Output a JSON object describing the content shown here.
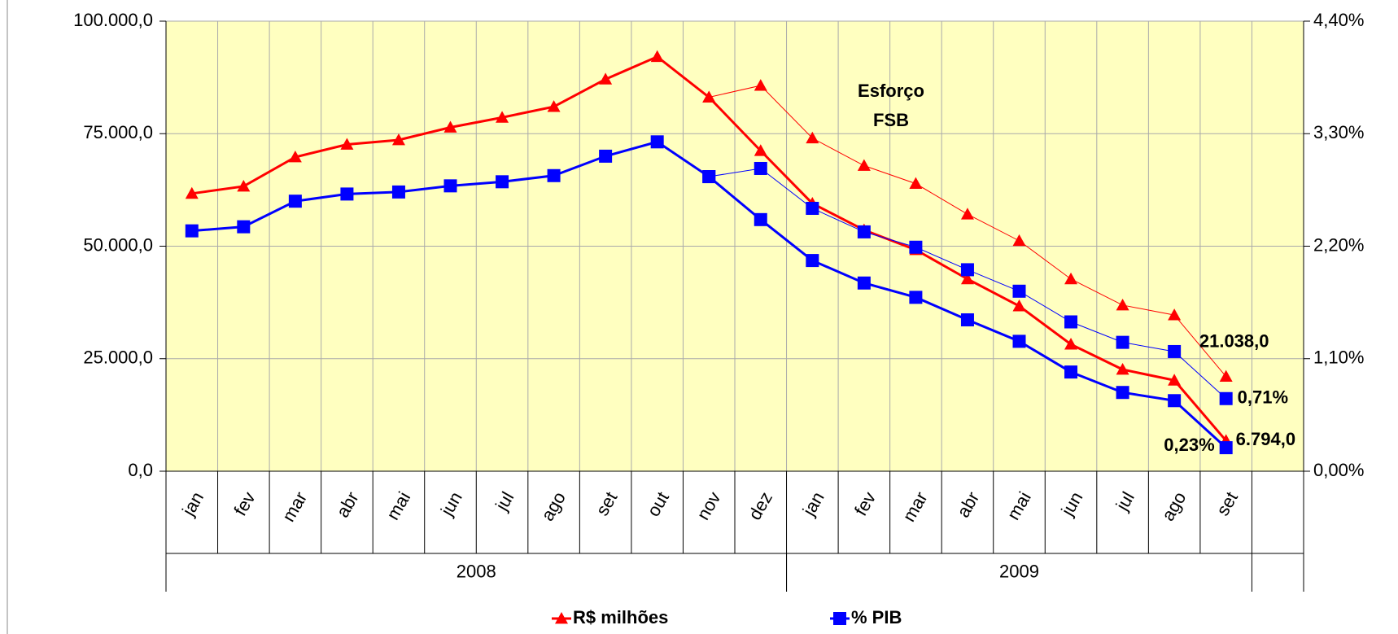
{
  "chart_data": {
    "type": "line",
    "categories": [
      "jan",
      "fev",
      "mar",
      "abr",
      "mai",
      "jun",
      "jul",
      "ago",
      "set",
      "out",
      "nov",
      "dez",
      "jan",
      "fev",
      "mar",
      "abr",
      "mai",
      "jun",
      "jul",
      "ago",
      "set",
      null
    ],
    "groups": [
      {
        "label": "2008",
        "span": 12
      },
      {
        "label": "2009",
        "span": 9
      }
    ],
    "annotation": [
      "Esforço",
      "FSB"
    ],
    "ylim": [
      0,
      100000
    ],
    "yticks": [
      {
        "value": 0,
        "label": "0,0"
      },
      {
        "value": 25000,
        "label": "25.000,0"
      },
      {
        "value": 50000,
        "label": "50.000,0"
      },
      {
        "value": 75000,
        "label": "75.000,0"
      },
      {
        "value": 100000,
        "label": "100.000,0"
      }
    ],
    "y2lim": [
      0,
      4.4
    ],
    "y2ticks": [
      {
        "value": 0,
        "label": "0,00%"
      },
      {
        "value": 1.1,
        "label": "1,10%"
      },
      {
        "value": 2.2,
        "label": "2,20%"
      },
      {
        "value": 3.3,
        "label": "3,30%"
      },
      {
        "value": 4.4,
        "label": "4,40%"
      }
    ],
    "grid": true,
    "legend": "bottom",
    "series": [
      {
        "name": "R$ milhões",
        "color": "#ff0000",
        "marker": "triangle",
        "width": 3,
        "values": [
          61700,
          63300,
          69800,
          72600,
          73600,
          76400,
          78600,
          81000,
          87100,
          92100,
          83100,
          71200,
          59500,
          53600,
          49200,
          42700,
          36700,
          28200,
          22600,
          20200,
          6794,
          null
        ],
        "value_labels": [
          null,
          null,
          null,
          null,
          null,
          null,
          null,
          null,
          null,
          null,
          null,
          null,
          null,
          null,
          null,
          null,
          null,
          null,
          null,
          null,
          "6.794,0",
          null
        ]
      },
      {
        "color": "#ff0000",
        "marker": "triangle",
        "width": 1,
        "values": [
          null,
          null,
          null,
          null,
          null,
          null,
          null,
          null,
          null,
          null,
          83100,
          85700,
          74000,
          67900,
          63900,
          57100,
          51200,
          42700,
          36900,
          34700,
          21038,
          null
        ],
        "value_labels": [
          null,
          null,
          null,
          null,
          null,
          null,
          null,
          null,
          null,
          null,
          null,
          null,
          null,
          null,
          null,
          null,
          null,
          null,
          null,
          null,
          "21.038,0",
          null
        ]
      },
      {
        "name": "% PIB",
        "color": "#0000ff",
        "marker": "square",
        "width": 3,
        "axis": "y2",
        "values": [
          2.35,
          2.39,
          2.64,
          2.71,
          2.73,
          2.79,
          2.83,
          2.89,
          3.08,
          3.22,
          2.88,
          2.46,
          2.06,
          1.84,
          1.7,
          1.48,
          1.27,
          0.97,
          0.77,
          0.69,
          0.23,
          null
        ],
        "value_labels": [
          null,
          null,
          null,
          null,
          null,
          null,
          null,
          null,
          null,
          null,
          null,
          null,
          null,
          null,
          null,
          null,
          null,
          null,
          null,
          null,
          "0,23%",
          null
        ]
      },
      {
        "color": "#0000ff",
        "marker": "square",
        "width": 1,
        "axis": "y2",
        "values": [
          null,
          null,
          null,
          null,
          null,
          null,
          null,
          null,
          null,
          null,
          2.88,
          2.96,
          2.57,
          2.34,
          2.19,
          1.97,
          1.76,
          1.46,
          1.26,
          1.17,
          0.71,
          null
        ],
        "value_labels": [
          null,
          null,
          null,
          null,
          null,
          null,
          null,
          null,
          null,
          null,
          null,
          null,
          null,
          null,
          null,
          null,
          null,
          null,
          null,
          null,
          "0,71%",
          null
        ]
      }
    ]
  }
}
